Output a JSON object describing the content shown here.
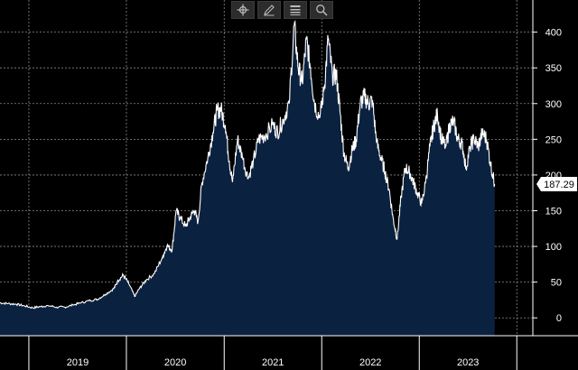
{
  "toolbar": {
    "tools": [
      {
        "name": "crosshair-icon"
      },
      {
        "name": "pen-icon"
      },
      {
        "name": "list-icon"
      },
      {
        "name": "search-icon"
      }
    ]
  },
  "colors": {
    "background": "#000000",
    "area_fill": "#0b2140",
    "line": "#ffffff",
    "grid": "#8a8a8a",
    "text": "#ffffff"
  },
  "chart_data": {
    "type": "area",
    "y_axis_position": "right",
    "ylim": [
      -25,
      445
    ],
    "y_ticks": [
      0,
      50,
      100,
      150,
      200,
      250,
      300,
      350,
      400
    ],
    "x_axis": {
      "type": "date",
      "range": [
        "2018-09-15",
        "2024-03-01"
      ],
      "year_labels": [
        "2019",
        "2020",
        "2021",
        "2022",
        "2023"
      ],
      "year_starts": [
        "2019-01-01",
        "2020-01-01",
        "2021-01-01",
        "2022-01-01",
        "2023-01-01",
        "2024-01-01"
      ]
    },
    "grid": true,
    "last_value_label": "187.29",
    "series": [
      {
        "values": [
          [
            "2018-09-15",
            21
          ],
          [
            "2018-10-15",
            20
          ],
          [
            "2018-11-15",
            19
          ],
          [
            "2018-12-15",
            17
          ],
          [
            "2019-01-15",
            14
          ],
          [
            "2019-02-15",
            16
          ],
          [
            "2019-03-15",
            17
          ],
          [
            "2019-04-15",
            15
          ],
          [
            "2019-05-15",
            15
          ],
          [
            "2019-06-15",
            18
          ],
          [
            "2019-07-15",
            21
          ],
          [
            "2019-08-15",
            24
          ],
          [
            "2019-09-15",
            26
          ],
          [
            "2019-10-15",
            33
          ],
          [
            "2019-11-15",
            41
          ],
          [
            "2019-12-01",
            52
          ],
          [
            "2019-12-20",
            60
          ],
          [
            "2020-01-10",
            48
          ],
          [
            "2020-02-01",
            30
          ],
          [
            "2020-02-20",
            42
          ],
          [
            "2020-03-15",
            53
          ],
          [
            "2020-04-15",
            62
          ],
          [
            "2020-05-15",
            85
          ],
          [
            "2020-06-01",
            101
          ],
          [
            "2020-06-20",
            95
          ],
          [
            "2020-07-05",
            150
          ],
          [
            "2020-07-20",
            140
          ],
          [
            "2020-08-10",
            128
          ],
          [
            "2020-08-25",
            140
          ],
          [
            "2020-09-10",
            150
          ],
          [
            "2020-09-25",
            135
          ],
          [
            "2020-10-10",
            190
          ],
          [
            "2020-11-01",
            225
          ],
          [
            "2020-11-20",
            260
          ],
          [
            "2020-12-05",
            290
          ],
          [
            "2020-12-20",
            292
          ],
          [
            "2021-01-05",
            270
          ],
          [
            "2021-01-20",
            220
          ],
          [
            "2021-02-01",
            190
          ],
          [
            "2021-02-20",
            250
          ],
          [
            "2021-03-10",
            225
          ],
          [
            "2021-04-01",
            195
          ],
          [
            "2021-04-20",
            220
          ],
          [
            "2021-05-10",
            250
          ],
          [
            "2021-06-01",
            255
          ],
          [
            "2021-07-01",
            270
          ],
          [
            "2021-07-20",
            260
          ],
          [
            "2021-08-10",
            278
          ],
          [
            "2021-09-01",
            300
          ],
          [
            "2021-09-20",
            410
          ],
          [
            "2021-10-05",
            350
          ],
          [
            "2021-10-20",
            330
          ],
          [
            "2021-11-05",
            390
          ],
          [
            "2021-11-20",
            350
          ],
          [
            "2021-12-05",
            300
          ],
          [
            "2021-12-25",
            280
          ],
          [
            "2022-01-10",
            320
          ],
          [
            "2022-01-25",
            390
          ],
          [
            "2022-02-10",
            340
          ],
          [
            "2022-02-25",
            340
          ],
          [
            "2022-03-10",
            290
          ],
          [
            "2022-03-25",
            230
          ],
          [
            "2022-04-10",
            210
          ],
          [
            "2022-04-25",
            235
          ],
          [
            "2022-05-10",
            250
          ],
          [
            "2022-05-25",
            300
          ],
          [
            "2022-06-10",
            310
          ],
          [
            "2022-06-25",
            300
          ],
          [
            "2022-07-10",
            305
          ],
          [
            "2022-07-25",
            245
          ],
          [
            "2022-08-10",
            225
          ],
          [
            "2022-08-25",
            205
          ],
          [
            "2022-09-10",
            180
          ],
          [
            "2022-09-25",
            140
          ],
          [
            "2022-10-10",
            110
          ],
          [
            "2022-10-25",
            170
          ],
          [
            "2022-11-10",
            210
          ],
          [
            "2022-11-25",
            205
          ],
          [
            "2022-12-10",
            190
          ],
          [
            "2022-12-25",
            175
          ],
          [
            "2023-01-10",
            160
          ],
          [
            "2023-01-25",
            190
          ],
          [
            "2023-02-10",
            240
          ],
          [
            "2023-02-25",
            270
          ],
          [
            "2023-03-10",
            285
          ],
          [
            "2023-03-25",
            250
          ],
          [
            "2023-04-10",
            240
          ],
          [
            "2023-04-25",
            270
          ],
          [
            "2023-05-10",
            275
          ],
          [
            "2023-05-25",
            250
          ],
          [
            "2023-06-10",
            245
          ],
          [
            "2023-06-25",
            210
          ],
          [
            "2023-07-10",
            240
          ],
          [
            "2023-07-25",
            250
          ],
          [
            "2023-08-10",
            240
          ],
          [
            "2023-08-25",
            260
          ],
          [
            "2023-09-10",
            250
          ],
          [
            "2023-09-25",
            215
          ],
          [
            "2023-10-10",
            187.29
          ]
        ]
      }
    ]
  }
}
